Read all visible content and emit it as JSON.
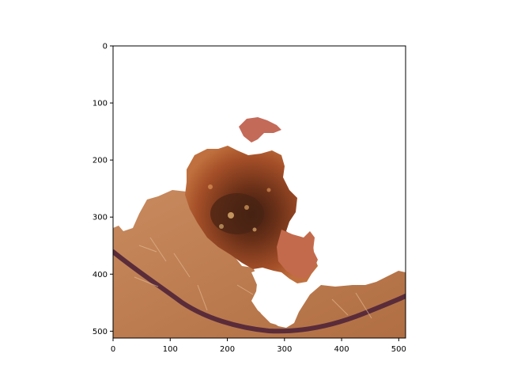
{
  "chart_data": {
    "type": "image",
    "title": "",
    "xlabel": "",
    "ylabel": "",
    "xlim": [
      0,
      512
    ],
    "ylim": [
      512,
      0
    ],
    "y_axis_inverted": true,
    "grid": false,
    "x_ticks": [
      0,
      100,
      200,
      300,
      400,
      500
    ],
    "y_ticks": [
      0,
      100,
      200,
      300,
      400,
      500
    ],
    "x_tick_labels": [
      "0",
      "100",
      "200",
      "300",
      "400",
      "500"
    ],
    "y_tick_labels": [
      "0",
      "100",
      "200",
      "300",
      "400",
      "500"
    ],
    "image_content": "segmented-skin-lesion",
    "colors": {
      "skin": "#c8865a",
      "skin_dark": "#a9653e",
      "lesion": "#9a4a2a",
      "lesion_core": "#4a2414",
      "vessel_line": "#5a2c3a",
      "patch": "#c06a58",
      "background": "#ffffff"
    }
  }
}
